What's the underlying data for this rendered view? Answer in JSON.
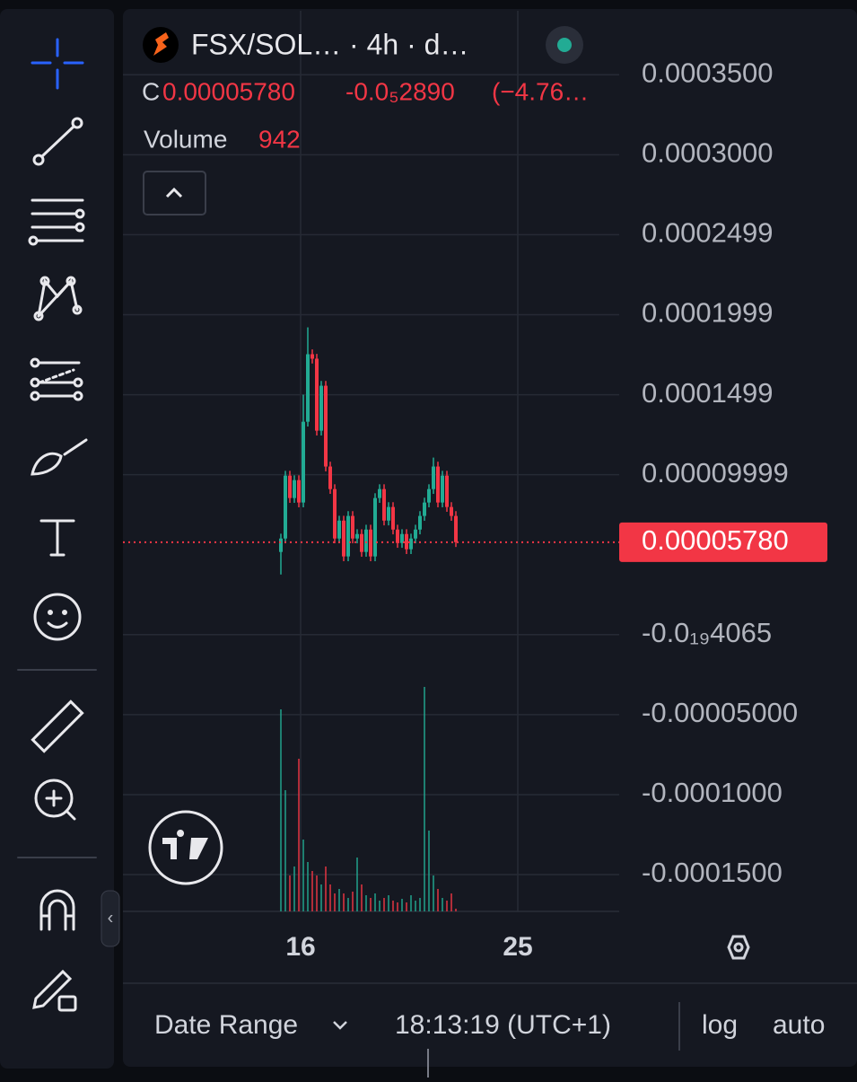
{
  "header": {
    "title": "FSX/SOL… · 4h · d…",
    "close_label": "C",
    "close": "0.00005780",
    "change": "-0.0₅2890",
    "change_pct": "(−4.76…",
    "volume_label": "Volume",
    "volume": "942"
  },
  "chart_data": {
    "type": "candlestick",
    "ylim": [
      -0.000173,
      0.00039
    ],
    "yticks": [
      {
        "value": 0.00035,
        "label": "0.0003500"
      },
      {
        "value": 0.0003,
        "label": "0.0003000"
      },
      {
        "value": 0.00025,
        "label": "0.0002499"
      },
      {
        "value": 0.0002,
        "label": "0.0001999"
      },
      {
        "value": 0.00015,
        "label": "0.0001499"
      },
      {
        "value": 0.0001,
        "label": "0.00009999"
      },
      {
        "value": 0,
        "label": "-0.0₁₉4065"
      },
      {
        "value": -5e-05,
        "label": "-0.00005000"
      },
      {
        "value": -0.0001,
        "label": "-0.0001000"
      },
      {
        "value": -0.00015,
        "label": "-0.0001500"
      }
    ],
    "last_price": {
      "value": 5.78e-05,
      "label": "0.00005780"
    },
    "x_labels": [
      "16",
      "25"
    ],
    "up_color": "#22ab94",
    "down_color": "#f23645",
    "open": [
      5.17e-05,
      6.01e-05,
      9.94e-05,
      8.54e-05,
      9.66e-05,
      8.26e-05,
      0.0001331,
      0.0001753,
      0.0001725,
      0.0001275,
      0.0001556,
      0.0001051,
      9.1e-05,
      6.01e-05,
      7.13e-05,
      4.89e-05,
      7.42e-05,
      6.01e-05,
      6.29e-05,
      5.17e-05,
      6.57e-05,
      4.89e-05,
      8.54e-05,
      9.1e-05,
      7.13e-05,
      7.98e-05,
      6.57e-05,
      5.73e-05,
      6.29e-05,
      5.34e-05,
      6.01e-05,
      6.57e-05,
      7.42e-05,
      8.26e-05,
      9.1e-05,
      0.0001051,
      8.26e-05,
      9.94e-05,
      7.98e-05,
      7.42e-05
    ],
    "high": [
      6.31e-05,
      0.0001024,
      0.0001024,
      9.96e-05,
      9.96e-05,
      0.00015,
      0.0001921,
      0.0001783,
      0.0001755,
      0.0001586,
      0.0001586,
      0.0001081,
      9.4e-05,
      7.43e-05,
      7.43e-05,
      7.72e-05,
      7.72e-05,
      6.59e-05,
      6.59e-05,
      6.87e-05,
      6.87e-05,
      8.84e-05,
      9.4e-05,
      9.4e-05,
      8.28e-05,
      8.28e-05,
      6.87e-05,
      6.59e-05,
      6.59e-05,
      6.31e-05,
      6.87e-05,
      7.72e-05,
      8.56e-05,
      9.4e-05,
      0.0001107,
      0.0001081,
      0.0001024,
      0.0001024,
      8.28e-05,
      7.72e-05
    ],
    "low": [
      3.76e-05,
      5.71e-05,
      8.24e-05,
      8.24e-05,
      7.96e-05,
      7.96e-05,
      0.0001301,
      0.0001695,
      0.0001245,
      0.0001245,
      0.0001021,
      8.8e-05,
      5.71e-05,
      5.71e-05,
      4.59e-05,
      4.59e-05,
      5.71e-05,
      5.71e-05,
      4.87e-05,
      4.87e-05,
      4.59e-05,
      4.59e-05,
      8.24e-05,
      6.83e-05,
      6.83e-05,
      6.27e-05,
      5.43e-05,
      5.43e-05,
      5.04e-05,
      5.04e-05,
      5.71e-05,
      6.27e-05,
      7.12e-05,
      7.96e-05,
      8.8e-05,
      7.96e-05,
      7.96e-05,
      7.68e-05,
      7.12e-05,
      5.48e-05
    ],
    "close": [
      6.01e-05,
      9.94e-05,
      8.54e-05,
      9.66e-05,
      8.26e-05,
      0.0001331,
      0.0001753,
      0.0001725,
      0.0001275,
      0.0001556,
      0.0001051,
      9.1e-05,
      6.01e-05,
      7.13e-05,
      4.89e-05,
      7.42e-05,
      6.01e-05,
      6.29e-05,
      5.17e-05,
      6.57e-05,
      4.89e-05,
      8.54e-05,
      9.1e-05,
      7.13e-05,
      7.98e-05,
      6.57e-05,
      5.73e-05,
      6.29e-05,
      5.34e-05,
      6.01e-05,
      6.57e-05,
      7.42e-05,
      8.26e-05,
      9.1e-05,
      0.0001051,
      8.26e-05,
      9.94e-05,
      7.98e-05,
      7.42e-05,
      5.78e-05
    ],
    "volume": [
      70650,
      42390,
      12560,
      15700,
      53380,
      25120,
      17270,
      14130,
      12560,
      9420,
      15700,
      9420,
      6280,
      7850,
      6280,
      4710,
      6910,
      18840,
      9420,
      5650,
      4710,
      6280,
      3770,
      4710,
      5650,
      3770,
      3140,
      4400,
      3140,
      5650,
      3770,
      4710,
      78500,
      28260,
      12560,
      7850,
      4710,
      3770,
      6280,
      942
    ]
  },
  "footer": {
    "date_range": "Date Range",
    "time": "18:13:19 (UTC+1)",
    "log": "log",
    "auto": "auto"
  }
}
